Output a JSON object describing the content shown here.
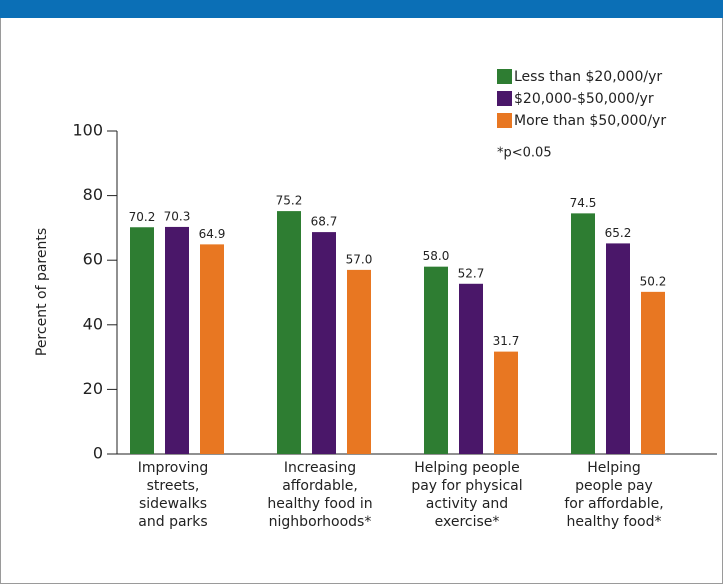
{
  "chart_data": {
    "type": "bar",
    "categories": [
      "Improving\nstreets,\nsidewalks\nand parks",
      "Increasing\naffordable,\nhealthy food in\nnighborhoods*",
      "Helping people\npay for physical\nactivity and\nexercise*",
      "Helping\npeople pay\nfor affordable,\nhealthy food*"
    ],
    "series": [
      {
        "name": "Less than $20,000/yr",
        "color": "#2e7d32",
        "values": [
          70.2,
          75.2,
          58.0,
          74.5
        ],
        "value_labels": [
          "70.2",
          "75.2",
          "58.0",
          "74.5"
        ]
      },
      {
        "name": "$20,000-$50,000/yr",
        "color": "#4a1769",
        "values": [
          70.3,
          68.7,
          52.7,
          65.2
        ],
        "value_labels": [
          "70.3",
          "68.7",
          "52.7",
          "65.2"
        ]
      },
      {
        "name": "More than $50,000/yr",
        "color": "#e87722",
        "values": [
          64.9,
          57.0,
          31.7,
          50.2
        ],
        "value_labels": [
          "64.9",
          "57.0",
          "31.7",
          "50.2"
        ]
      }
    ],
    "ylabel": "Percent of parents",
    "note": "*p<0.05",
    "ylim": [
      0,
      100
    ],
    "yticks": [
      0,
      20,
      40,
      60,
      80,
      100
    ],
    "legend": "upper right"
  }
}
